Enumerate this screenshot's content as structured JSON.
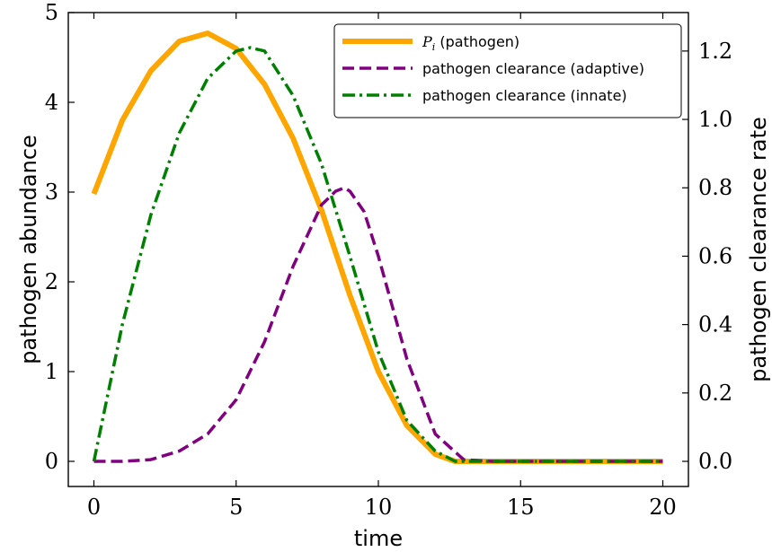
{
  "chart_data": {
    "type": "line",
    "xlabel": "time",
    "ylabel_left": "pathogen abundance",
    "ylabel_right": "pathogen clearance rate",
    "xlim": [
      -0.9,
      20.9
    ],
    "ylim_left": [
      -0.28,
      5.0
    ],
    "ylim_right": [
      -0.0735,
      1.3125
    ],
    "x_ticks": [
      0,
      5,
      10,
      15,
      20
    ],
    "y_left_ticks": [
      0,
      1,
      2,
      3,
      4,
      5
    ],
    "y_right_ticks": [
      "0.0",
      "0.2",
      "0.4",
      "0.6",
      "0.8",
      "1.0",
      "1.2"
    ],
    "grid": false,
    "legend_position": "top-right",
    "legend_math_label": "P",
    "legend_math_sub": "i",
    "series": [
      {
        "name": " (pathogen)",
        "axis": "left",
        "color": "#FFA500",
        "style": "solid",
        "x": [
          0,
          1,
          2,
          3,
          4,
          5,
          6,
          7,
          8,
          9,
          10,
          11,
          12,
          12.7,
          13,
          14,
          15,
          16,
          17,
          18,
          19,
          20
        ],
        "y": [
          2.98,
          3.8,
          4.35,
          4.68,
          4.77,
          4.6,
          4.2,
          3.6,
          2.8,
          1.85,
          1.0,
          0.4,
          0.08,
          0.0,
          0.0,
          0.0,
          0.0,
          0.0,
          0.0,
          0.0,
          0.0,
          0.0
        ]
      },
      {
        "name": "pathogen clearance (adaptive)",
        "axis": "right",
        "color": "#800080",
        "style": "dashed",
        "x": [
          0,
          1,
          2,
          3,
          4,
          5,
          6,
          7,
          8,
          8.5,
          8.8,
          9,
          9.5,
          10,
          11,
          12,
          13,
          14,
          15,
          16,
          17,
          18,
          19,
          20
        ],
        "y": [
          0.0,
          0.0,
          0.005,
          0.03,
          0.08,
          0.18,
          0.35,
          0.57,
          0.75,
          0.79,
          0.8,
          0.79,
          0.73,
          0.6,
          0.3,
          0.08,
          0.005,
          0.0,
          0.0,
          0.0,
          0.0,
          0.0,
          0.0,
          0.0
        ]
      },
      {
        "name": "pathogen clearance (innate)",
        "axis": "right",
        "color": "#008000",
        "style": "dashdot",
        "x": [
          0,
          1,
          2,
          3,
          4,
          5,
          5.5,
          6,
          7,
          8,
          9,
          10,
          11,
          12,
          12.7,
          13,
          14,
          15,
          16,
          17,
          18,
          19,
          20
        ],
        "y": [
          0.0,
          0.4,
          0.72,
          0.96,
          1.12,
          1.2,
          1.21,
          1.2,
          1.07,
          0.87,
          0.6,
          0.32,
          0.12,
          0.03,
          0.0,
          0.0,
          0.0,
          0.0,
          0.0,
          0.0,
          0.0,
          0.0,
          0.0
        ]
      }
    ]
  }
}
